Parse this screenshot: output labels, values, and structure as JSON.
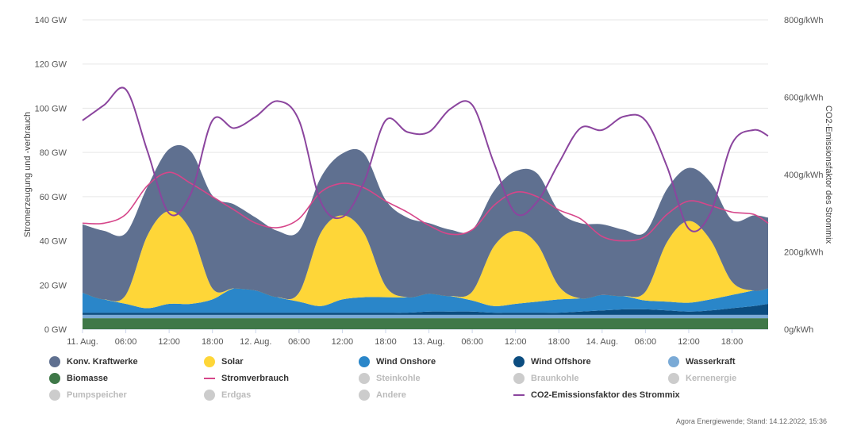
{
  "chart_data": {
    "type": "area",
    "x_labels": [
      "11. Aug.",
      "06:00",
      "12:00",
      "18:00",
      "12. Aug.",
      "06:00",
      "12:00",
      "18:00",
      "13. Aug.",
      "06:00",
      "12:00",
      "18:00",
      "14. Aug.",
      "06:00",
      "12:00",
      "18:00"
    ],
    "x_hours": [
      0,
      6,
      12,
      18,
      24,
      30,
      36,
      42,
      48,
      54,
      60,
      66,
      72,
      78,
      84,
      90
    ],
    "x_range": [
      0,
      95
    ],
    "y_left": {
      "ticks": [
        "0 GW",
        "20 GW",
        "40 GW",
        "60 GW",
        "80 GW",
        "100 GW",
        "120 GW",
        "140 GW"
      ],
      "range": [
        0,
        140
      ],
      "label": "Stromerzeugung und -verbrauch",
      "unit": "GW"
    },
    "y_right": {
      "ticks": [
        "0g/kWh",
        "200g/kWh",
        "400g/kWh",
        "600g/kWh",
        "800g/kWh"
      ],
      "range": [
        0,
        800
      ],
      "label": "CO2-Emissionsfaktor des Strommix",
      "unit": "g/kWh"
    },
    "grid": true,
    "legend_position": "bottom",
    "colors": {
      "Konv. Kraftwerke": "#5f7090",
      "Solar": "#fed638",
      "Wind Onshore": "#2a86c9",
      "Wind Offshore": "#0c4d80",
      "Wasserkraft": "#7aaad6",
      "Biomasse": "#3f7848",
      "Stromverbrauch": "#d6468a",
      "CO2": "#8b459e"
    },
    "x": [
      0,
      3,
      6,
      9,
      12,
      15,
      18,
      21,
      24,
      27,
      30,
      33,
      36,
      39,
      42,
      45,
      48,
      51,
      54,
      57,
      60,
      63,
      66,
      69,
      72,
      75,
      78,
      81,
      84,
      87,
      90,
      93,
      95
    ],
    "series": [
      {
        "name": "Biomasse",
        "values": [
          5,
          5,
          5,
          5,
          5,
          5,
          5,
          5,
          5,
          5,
          5,
          5,
          5,
          5,
          5,
          5,
          5,
          5,
          5,
          5,
          5,
          5,
          5,
          5,
          5,
          5,
          5,
          5,
          5,
          5,
          5,
          5,
          5
        ]
      },
      {
        "name": "Wasserkraft",
        "values": [
          1.5,
          1.5,
          1.5,
          1.5,
          1.5,
          1.5,
          1.5,
          1.5,
          1.5,
          1.5,
          1.5,
          1.5,
          1.5,
          1.5,
          1.5,
          1.5,
          1.5,
          1.5,
          1.5,
          1.5,
          1.5,
          1.5,
          1.5,
          1.5,
          1.5,
          1.5,
          1.5,
          1.5,
          1.5,
          1.5,
          1.5,
          1.5,
          1.5
        ]
      },
      {
        "name": "Wind Offshore",
        "values": [
          1,
          1,
          1,
          1,
          1,
          1,
          1,
          1,
          1,
          1,
          1,
          1,
          1,
          1,
          1,
          1,
          1.5,
          1.5,
          1.5,
          1,
          1,
          1,
          1,
          1.5,
          2,
          2.5,
          2.5,
          2,
          1.5,
          2,
          3,
          4,
          5
        ]
      },
      {
        "name": "Wind Onshore",
        "values": [
          9,
          6,
          4,
          2,
          4,
          4,
          6,
          11,
          10,
          7,
          5,
          3,
          6,
          7,
          7,
          7,
          8,
          7,
          5,
          3,
          4,
          5,
          6,
          6,
          7,
          6,
          4,
          4,
          4,
          5,
          6,
          7,
          7
        ]
      },
      {
        "name": "Solar",
        "values": [
          0,
          0,
          4,
          33,
          42,
          33,
          5,
          0,
          0,
          0,
          4,
          33,
          38,
          29,
          5,
          0,
          0,
          0,
          4,
          27,
          33,
          26,
          6,
          0,
          0,
          0,
          4,
          27,
          37,
          27,
          6,
          0,
          0
        ]
      },
      {
        "name": "Konv. Kraftwerke",
        "values": [
          31,
          31,
          28,
          22,
          28,
          36,
          42,
          38,
          33,
          30,
          28,
          25,
          28,
          36,
          39,
          36,
          32,
          30,
          28,
          25,
          27,
          32,
          34,
          34,
          32,
          30,
          27,
          24,
          24,
          26,
          28,
          34,
          32
        ]
      },
      {
        "name": "Stromverbrauch",
        "values": [
          48,
          48,
          52,
          65,
          71,
          66,
          60,
          54,
          48,
          46,
          50,
          62,
          66,
          64,
          58,
          53,
          47,
          43,
          45,
          56,
          62,
          60,
          54,
          50,
          42,
          40,
          42,
          52,
          58,
          56,
          53,
          52,
          48
        ]
      },
      {
        "name": "CO2-Emissionsfaktor des Strommix",
        "values": [
          540,
          580,
          620,
          460,
          300,
          350,
          540,
          520,
          550,
          590,
          540,
          330,
          290,
          380,
          540,
          510,
          510,
          570,
          580,
          430,
          300,
          330,
          430,
          520,
          515,
          550,
          540,
          420,
          260,
          300,
          480,
          515,
          500
        ]
      }
    ]
  },
  "legend": {
    "items": [
      {
        "label": "Konv. Kraftwerke",
        "color": "#5f7090",
        "kind": "dot",
        "active": true
      },
      {
        "label": "Solar",
        "color": "#fed638",
        "kind": "dot",
        "active": true
      },
      {
        "label": "Wind Onshore",
        "color": "#2a86c9",
        "kind": "dot",
        "active": true
      },
      {
        "label": "Wind Offshore",
        "color": "#0c4d80",
        "kind": "dot",
        "active": true
      },
      {
        "label": "Wasserkraft",
        "color": "#7aaad6",
        "kind": "dot",
        "active": true
      },
      {
        "label": "Biomasse",
        "color": "#3f7848",
        "kind": "dot",
        "active": true
      },
      {
        "label": "Stromverbrauch",
        "color": "#d6468a",
        "kind": "line",
        "active": true
      },
      {
        "label": "Steinkohle",
        "color": "#cccccc",
        "kind": "dot",
        "active": false
      },
      {
        "label": "Braunkohle",
        "color": "#cccccc",
        "kind": "dot",
        "active": false
      },
      {
        "label": "Kernenergie",
        "color": "#cccccc",
        "kind": "dot",
        "active": false
      },
      {
        "label": "Pumpspeicher",
        "color": "#cccccc",
        "kind": "dot",
        "active": false
      },
      {
        "label": "Erdgas",
        "color": "#cccccc",
        "kind": "dot",
        "active": false
      },
      {
        "label": "Andere",
        "color": "#cccccc",
        "kind": "dot",
        "active": false
      },
      {
        "label": "CO2-Emissionsfaktor des Strommix",
        "color": "#8b459e",
        "kind": "line",
        "active": true
      }
    ]
  },
  "source": "Agora Energiewende; Stand: 14.12.2022, 15:36"
}
